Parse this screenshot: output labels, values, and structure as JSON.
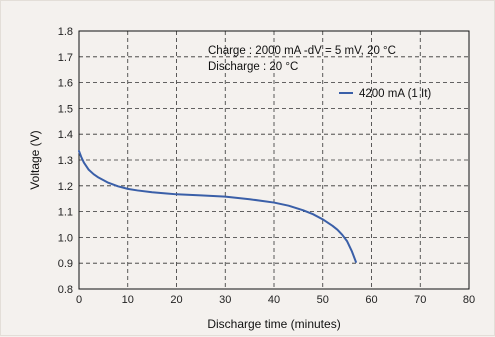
{
  "chart_data": {
    "type": "line",
    "xlabel": "Discharge time (minutes)",
    "ylabel": "Voltage (V)",
    "xlim": [
      0,
      80
    ],
    "ylim": [
      0.8,
      1.8
    ],
    "x_ticks": [
      0,
      10,
      20,
      30,
      40,
      50,
      60,
      70,
      80
    ],
    "y_ticks": [
      0.8,
      0.9,
      1.0,
      1.1,
      1.2,
      1.3,
      1.4,
      1.5,
      1.6,
      1.7,
      1.8
    ],
    "x_tick_labels": [
      "0",
      "10",
      "20",
      "30",
      "40",
      "50",
      "60",
      "70",
      "80"
    ],
    "y_tick_labels": [
      "0.8",
      "0.9",
      "1.0",
      "1.1",
      "1.2",
      "1.3",
      "1.4",
      "1.5",
      "1.6",
      "1.7",
      "1.8"
    ],
    "grid": true,
    "legend_position": "top-right",
    "annotations": [
      "Charge : 2000 mA -dV = 5 mV, 20 °C",
      "Discharge : 20 °C"
    ],
    "series": [
      {
        "name": "4200 mA (1 It)",
        "color": "#3a5fa8",
        "points": [
          [
            0,
            1.335
          ],
          [
            0.5,
            1.31
          ],
          [
            1,
            1.29
          ],
          [
            2,
            1.262
          ],
          [
            3,
            1.245
          ],
          [
            4,
            1.232
          ],
          [
            5,
            1.222
          ],
          [
            6,
            1.212
          ],
          [
            8,
            1.198
          ],
          [
            10,
            1.188
          ],
          [
            12,
            1.182
          ],
          [
            15,
            1.175
          ],
          [
            18,
            1.17
          ],
          [
            20,
            1.167
          ],
          [
            25,
            1.163
          ],
          [
            30,
            1.158
          ],
          [
            35,
            1.148
          ],
          [
            40,
            1.135
          ],
          [
            43,
            1.123
          ],
          [
            46,
            1.105
          ],
          [
            48,
            1.09
          ],
          [
            50,
            1.07
          ],
          [
            52,
            1.045
          ],
          [
            53,
            1.03
          ],
          [
            54,
            1.01
          ],
          [
            55,
            0.985
          ],
          [
            56,
            0.945
          ],
          [
            56.8,
            0.905
          ]
        ]
      }
    ]
  }
}
